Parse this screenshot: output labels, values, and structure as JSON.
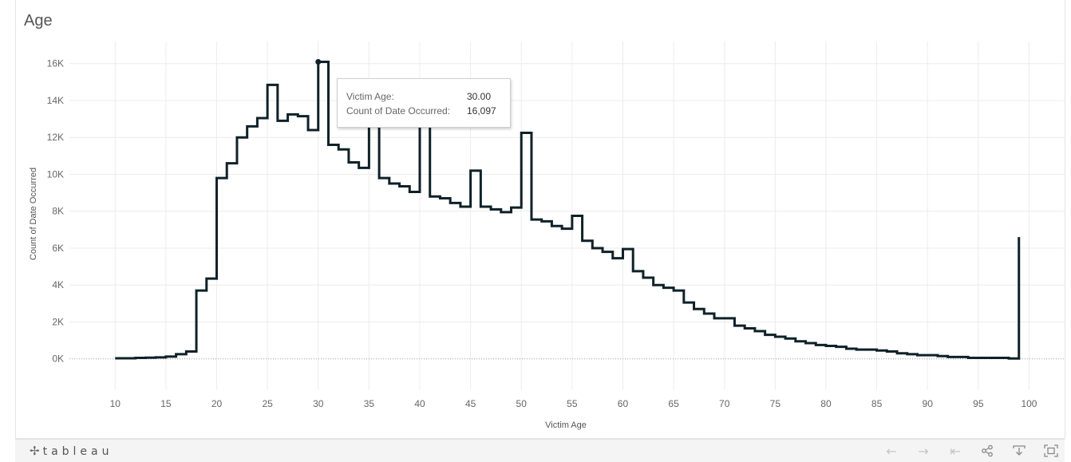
{
  "title": "Age",
  "chart_data": {
    "type": "line",
    "step": true,
    "xlabel": "Victim Age",
    "ylabel": "Count of Date Occurred",
    "xlim": [
      5.5,
      103.5
    ],
    "ylim": [
      -1700,
      17200
    ],
    "x_ticks": [
      10,
      15,
      20,
      25,
      30,
      35,
      40,
      45,
      50,
      55,
      60,
      65,
      70,
      75,
      80,
      85,
      90,
      95,
      100
    ],
    "y_ticks": [
      {
        "value": 0,
        "label": "0K"
      },
      {
        "value": 2000,
        "label": "2K"
      },
      {
        "value": 4000,
        "label": "4K"
      },
      {
        "value": 6000,
        "label": "6K"
      },
      {
        "value": 8000,
        "label": "8K"
      },
      {
        "value": 10000,
        "label": "10K"
      },
      {
        "value": 12000,
        "label": "12K"
      },
      {
        "value": 14000,
        "label": "14K"
      },
      {
        "value": 16000,
        "label": "16K"
      }
    ],
    "grid": true,
    "line_color": "#0f2128",
    "series": [
      {
        "x": [
          10,
          11,
          12,
          13,
          14,
          15,
          16,
          17,
          18,
          19,
          20,
          21,
          22,
          23,
          24,
          25,
          26,
          27,
          28,
          29,
          30,
          31,
          32,
          33,
          34,
          35,
          36,
          37,
          38,
          39,
          40,
          41,
          42,
          43,
          44,
          45,
          46,
          47,
          48,
          49,
          50,
          51,
          52,
          53,
          54,
          55,
          56,
          57,
          58,
          59,
          60,
          61,
          62,
          63,
          64,
          65,
          66,
          67,
          68,
          69,
          70,
          71,
          72,
          73,
          74,
          75,
          76,
          77,
          78,
          79,
          80,
          81,
          82,
          83,
          84,
          85,
          86,
          87,
          88,
          89,
          90,
          91,
          92,
          93,
          94,
          95,
          96,
          97,
          98,
          99
        ],
        "values": [
          30,
          30,
          50,
          60,
          80,
          120,
          250,
          400,
          3700,
          4350,
          9800,
          10600,
          12000,
          12600,
          13050,
          14850,
          12900,
          13250,
          13150,
          12400,
          16097,
          11600,
          11350,
          10650,
          10350,
          14100,
          9800,
          9500,
          9350,
          9050,
          14300,
          8800,
          8700,
          8450,
          8250,
          10200,
          8250,
          8100,
          7950,
          8200,
          12250,
          7550,
          7450,
          7200,
          7050,
          7750,
          6400,
          6000,
          5800,
          5450,
          5950,
          4750,
          4400,
          4000,
          3850,
          3700,
          3050,
          2700,
          2450,
          2200,
          2200,
          1800,
          1650,
          1500,
          1300,
          1200,
          1100,
          950,
          850,
          750,
          700,
          650,
          550,
          500,
          500,
          450,
          400,
          300,
          250,
          200,
          200,
          150,
          100,
          100,
          50,
          50,
          50,
          50,
          20,
          6600
        ]
      }
    ],
    "highlight": {
      "x": 30,
      "y": 16097
    }
  },
  "tooltip": {
    "rows": [
      {
        "label": "Victim Age:",
        "value": "30.00"
      },
      {
        "label": "Count of Date Occurred:",
        "value": "16,097"
      }
    ]
  },
  "footer": {
    "logo_mark": "✢",
    "logo_text": "tableau",
    "icons": [
      "undo-arrow-icon",
      "redo-arrow-icon",
      "revert-icon",
      "share-icon",
      "download-icon",
      "fullscreen-icon"
    ]
  }
}
